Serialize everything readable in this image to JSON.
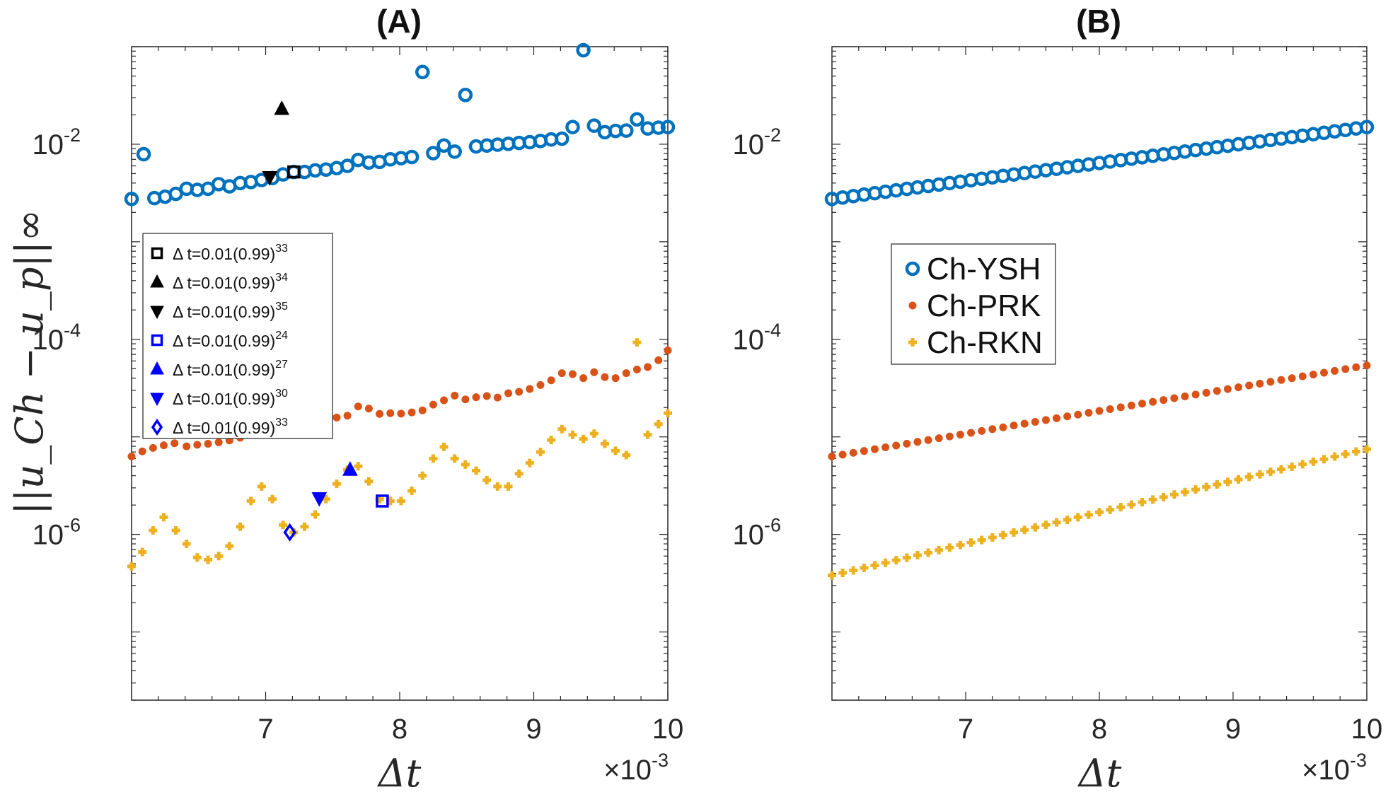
{
  "chart_data": [
    {
      "type": "scatter",
      "title": "(A)",
      "xlabel": "Δt",
      "x_multiplier": "×10",
      "x_multiplier_exp": "-3",
      "ylabel": "||u_Ch − u_p||∞",
      "yscale": "log",
      "xlim": [
        6.0,
        10.0
      ],
      "ylim": [
        2e-08,
        0.1
      ],
      "x_ticks": [
        "7",
        "8",
        "9",
        "10"
      ],
      "y_ticks": [
        {
          "base": "10",
          "exp": "-2"
        },
        {
          "base": "10",
          "exp": "-4"
        },
        {
          "base": "10",
          "exp": "-6"
        }
      ],
      "legend_position": "left-middle",
      "series": [
        {
          "name": "Ch-YSH",
          "marker": "circle",
          "color": "#0072BD",
          "x": [
            6.0,
            6.09,
            6.17,
            6.25,
            6.33,
            6.41,
            6.49,
            6.57,
            6.65,
            6.73,
            6.81,
            6.89,
            6.97,
            7.05,
            7.13,
            7.21,
            7.29,
            7.37,
            7.45,
            7.53,
            7.61,
            7.69,
            7.77,
            7.85,
            7.93,
            8.01,
            8.09,
            8.17,
            8.25,
            8.33,
            8.41,
            8.49,
            8.57,
            8.65,
            8.73,
            8.81,
            8.89,
            8.97,
            9.05,
            9.13,
            9.21,
            9.29,
            9.37,
            9.45,
            9.53,
            9.61,
            9.69,
            9.77,
            9.85,
            9.93,
            10.0
          ],
          "y": [
            0.00275,
            0.0079,
            0.0028,
            0.0029,
            0.0031,
            0.0035,
            0.0034,
            0.0035,
            0.0039,
            0.0037,
            0.004,
            0.0041,
            0.0043,
            0.0045,
            0.0049,
            0.0052,
            0.0052,
            0.0054,
            0.0055,
            0.0057,
            0.006,
            0.0069,
            0.0065,
            0.0066,
            0.007,
            0.0072,
            0.0074,
            0.055,
            0.0081,
            0.0097,
            0.0084,
            0.032,
            0.0095,
            0.0097,
            0.0099,
            0.0101,
            0.0103,
            0.0105,
            0.0108,
            0.0112,
            0.0114,
            0.015,
            0.092,
            0.0155,
            0.0133,
            0.0137,
            0.0138,
            0.018,
            0.0145,
            0.0148,
            0.015
          ]
        },
        {
          "name": "Ch-PRK",
          "marker": "dot",
          "color": "#D95319",
          "x": [
            6.0,
            6.08,
            6.16,
            6.24,
            6.32,
            6.41,
            6.49,
            6.57,
            6.65,
            6.73,
            6.81,
            6.89,
            6.97,
            7.05,
            7.13,
            7.21,
            7.29,
            7.37,
            7.45,
            7.53,
            7.61,
            7.69,
            7.77,
            7.85,
            7.93,
            8.01,
            8.09,
            8.17,
            8.25,
            8.33,
            8.41,
            8.49,
            8.57,
            8.65,
            8.73,
            8.81,
            8.89,
            8.97,
            9.05,
            9.13,
            9.21,
            9.29,
            9.37,
            9.45,
            9.53,
            9.61,
            9.69,
            9.77,
            9.85,
            9.93,
            10.0
          ],
          "y": [
            6.3e-06,
            7.1e-06,
            7.7e-06,
            8.2e-06,
            8.6e-06,
            8e-06,
            8.3e-06,
            8.5e-06,
            8.8e-06,
            9.2e-06,
            9.8e-06,
            1.07e-05,
            1.15e-05,
            1.28e-05,
            1.25e-05,
            1.27e-05,
            1.3e-05,
            1.36e-05,
            1.45e-05,
            1.58e-05,
            1.65e-05,
            2.05e-05,
            1.95e-05,
            1.72e-05,
            1.75e-05,
            1.73e-05,
            1.78e-05,
            1.87e-05,
            2.14e-05,
            2.37e-05,
            2.65e-05,
            2.42e-05,
            2.55e-05,
            2.62e-05,
            2.53e-05,
            2.8e-05,
            2.9e-05,
            3.1e-05,
            3.4e-05,
            3.8e-05,
            4.5e-05,
            4.4e-05,
            4e-05,
            4.6e-05,
            4.1e-05,
            4e-05,
            4.5e-05,
            4.9e-05,
            5.2e-05,
            6.1e-05,
            7.7e-05
          ]
        },
        {
          "name": "Ch-RKN",
          "marker": "plus",
          "color": "#EDB120",
          "x": [
            6.0,
            6.08,
            6.16,
            6.24,
            6.33,
            6.41,
            6.49,
            6.57,
            6.65,
            6.73,
            6.81,
            6.89,
            6.97,
            7.05,
            7.13,
            7.21,
            7.29,
            7.37,
            7.45,
            7.53,
            7.61,
            7.69,
            7.77,
            7.85,
            7.93,
            8.01,
            8.09,
            8.17,
            8.25,
            8.33,
            8.41,
            8.49,
            8.57,
            8.65,
            8.73,
            8.81,
            8.89,
            8.97,
            9.05,
            9.13,
            9.21,
            9.29,
            9.37,
            9.45,
            9.53,
            9.61,
            9.69,
            9.77,
            9.85,
            9.93,
            10.0
          ],
          "y": [
            4.7e-07,
            6.6e-07,
            1.1e-06,
            1.5e-06,
            1.1e-06,
            8e-07,
            5.8e-07,
            5.5e-07,
            6e-07,
            7.6e-07,
            1.2e-06,
            2.2e-06,
            3.1e-06,
            2.3e-06,
            1.25e-06,
            1.05e-06,
            1.2e-06,
            1.6e-06,
            2.3e-06,
            3.3e-06,
            4.6e-06,
            5e-06,
            3.5e-06,
            2.3e-06,
            2.2e-06,
            2.2e-06,
            2.8e-06,
            4e-06,
            6e-06,
            7.9e-06,
            6e-06,
            5.2e-06,
            4.5e-06,
            3.6e-06,
            3.1e-06,
            3.1e-06,
            4.2e-06,
            5.4e-06,
            7e-06,
            9.3e-06,
            1.2e-05,
            1.05e-05,
            9.5e-06,
            1.08e-05,
            8.5e-06,
            7.2e-06,
            6.5e-06,
            9.3e-05,
            1.05e-05,
            1.35e-05,
            1.75e-05
          ]
        }
      ],
      "highlights": [
        {
          "label": "Δ  t=0.01(0.99)",
          "exp": "33",
          "marker": "square",
          "color": "#000000",
          "x": 7.21,
          "y": 0.0052
        },
        {
          "label": "Δ  t=0.01(0.99)",
          "exp": "34",
          "marker": "triangle-up",
          "color": "#000000",
          "x": 7.12,
          "y": 0.023
        },
        {
          "label": "Δ  t=0.01(0.99)",
          "exp": "35",
          "marker": "triangle-down",
          "color": "#000000",
          "x": 7.03,
          "y": 0.0046
        },
        {
          "label": "Δ  t=0.01(0.99)",
          "exp": "24",
          "marker": "square",
          "color": "#0000FF",
          "x": 7.87,
          "y": 2.2e-06
        },
        {
          "label": "Δ  t=0.01(0.99)",
          "exp": "27",
          "marker": "triangle-up",
          "color": "#0000FF",
          "x": 7.63,
          "y": 4.6e-06
        },
        {
          "label": "Δ  t=0.01(0.99)",
          "exp": "30",
          "marker": "triangle-down",
          "color": "#0000FF",
          "x": 7.4,
          "y": 2.35e-06
        },
        {
          "label": "Δ  t=0.01(0.99)",
          "exp": "33",
          "marker": "diamond",
          "color": "#0000FF",
          "x": 7.18,
          "y": 1.05e-06
        }
      ]
    },
    {
      "type": "scatter",
      "title": "(B)",
      "xlabel": "Δt",
      "x_multiplier": "×10",
      "x_multiplier_exp": "-3",
      "yscale": "log",
      "xlim": [
        6.0,
        10.0
      ],
      "ylim": [
        2e-08,
        0.1
      ],
      "x_ticks": [
        "7",
        "8",
        "9",
        "10"
      ],
      "y_ticks": [
        {
          "base": "10",
          "exp": "-2"
        },
        {
          "base": "10",
          "exp": "-4"
        },
        {
          "base": "10",
          "exp": "-6"
        }
      ],
      "legend_position": "left-middle",
      "legend": [
        "Ch-YSH",
        "Ch-PRK",
        "Ch-RKN"
      ],
      "series": [
        {
          "name": "Ch-YSH",
          "marker": "circle",
          "color": "#0072BD",
          "start": 0.00275,
          "end": 0.015,
          "count": 51
        },
        {
          "name": "Ch-PRK",
          "marker": "dot",
          "color": "#D95319",
          "start": 6.3e-06,
          "end": 5.4e-05,
          "count": 51
        },
        {
          "name": "Ch-RKN",
          "marker": "plus",
          "color": "#EDB120",
          "start": 3.8e-07,
          "end": 7.5e-06,
          "count": 51
        }
      ]
    }
  ]
}
